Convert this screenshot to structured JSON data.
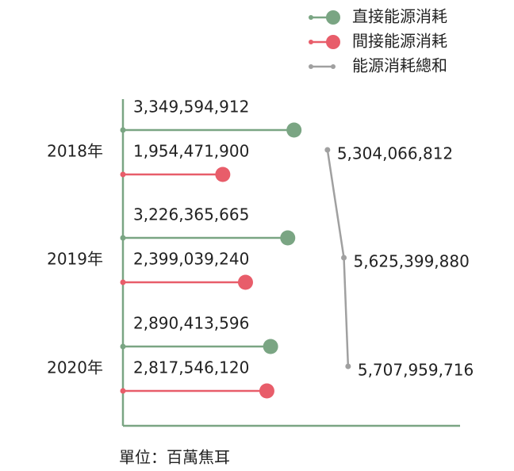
{
  "chart_data": {
    "type": "lollipop",
    "categories": [
      "2018年",
      "2019年",
      "2020年"
    ],
    "series": [
      {
        "name": "直接能源消耗",
        "color": "#7aa583",
        "values": [
          3349594912,
          3226365665,
          2890413596
        ],
        "value_labels": [
          "3,349,594,912",
          "3,226,365,665",
          "2,890,413,596"
        ]
      },
      {
        "name": "間接能源消耗",
        "color": "#e85d6a",
        "values": [
          1954471900,
          2399039240,
          2817546120
        ],
        "value_labels": [
          "1,954,471,900",
          "2,399,039,240",
          "2,817,546,120"
        ]
      },
      {
        "name": "能源消耗總和",
        "color": "#a0a0a0",
        "axis": "x2",
        "values": [
          5304066812,
          5625399880,
          5707959716
        ],
        "value_labels": [
          "5,304,066,812",
          "5,625,399,880",
          "5,707,959,716"
        ]
      }
    ],
    "xlim": [
      0,
      6600000000
    ],
    "x2lim": [
      1300000000,
      7900000000
    ],
    "note": "單位：百萬焦耳"
  }
}
